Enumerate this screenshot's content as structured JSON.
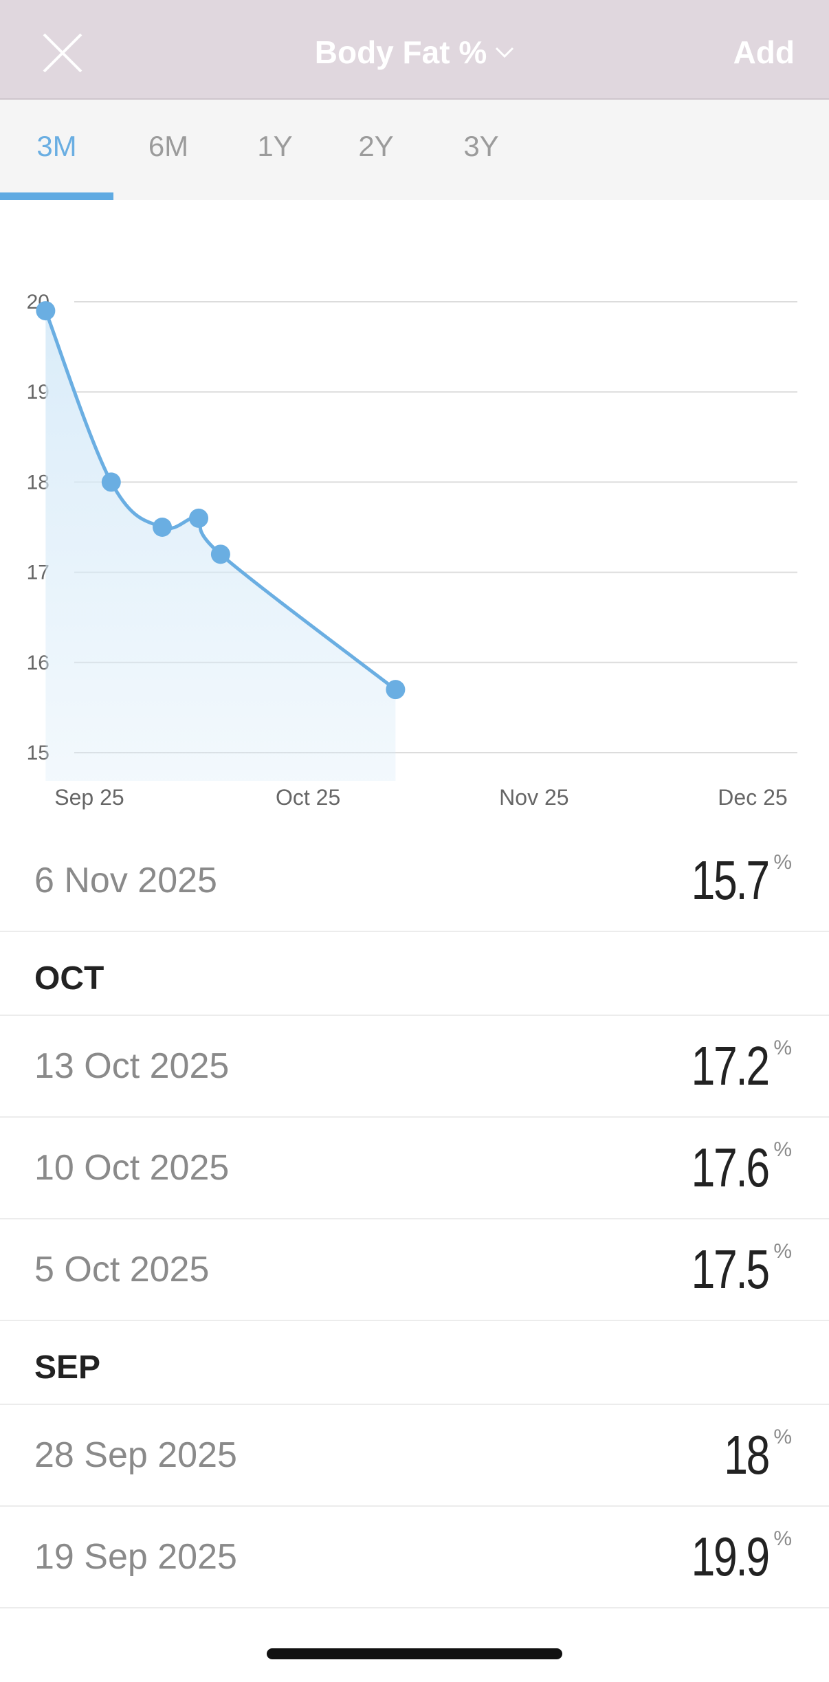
{
  "header": {
    "title": "Body Fat %",
    "add_label": "Add"
  },
  "tabs": [
    {
      "label": "3M",
      "active": true
    },
    {
      "label": "6M",
      "active": false
    },
    {
      "label": "1Y",
      "active": false
    },
    {
      "label": "2Y",
      "active": false
    },
    {
      "label": "3Y",
      "active": false
    }
  ],
  "chart_data": {
    "type": "area",
    "title": "",
    "xlabel": "",
    "ylabel": "",
    "ylim": [
      15,
      20
    ],
    "y_ticks": [
      "20",
      "19",
      "18",
      "17",
      "16",
      "15"
    ],
    "x_ticks": [
      "Sep 25",
      "Oct 25",
      "Nov 25",
      "Dec 25"
    ],
    "points": [
      {
        "date": "19 Sep 2025",
        "value": 19.9
      },
      {
        "date": "28 Sep 2025",
        "value": 18.0
      },
      {
        "date": "5 Oct 2025",
        "value": 17.5
      },
      {
        "date": "10 Oct 2025",
        "value": 17.6
      },
      {
        "date": "13 Oct 2025",
        "value": 17.2
      },
      {
        "date": "6 Nov 2025",
        "value": 15.7
      }
    ],
    "grid": true,
    "colors": {
      "line": "#6aaee2",
      "fill": "#d6eaf8"
    }
  },
  "entries": {
    "latest": {
      "date": "6 Nov 2025",
      "value": "15.7",
      "unit": "%"
    },
    "oct": {
      "header": "OCT",
      "items": [
        {
          "date": "13 Oct 2025",
          "value": "17.2",
          "unit": "%"
        },
        {
          "date": "10 Oct 2025",
          "value": "17.6",
          "unit": "%"
        },
        {
          "date": "5 Oct 2025",
          "value": "17.5",
          "unit": "%"
        }
      ]
    },
    "sep": {
      "header": "SEP",
      "items": [
        {
          "date": "28 Sep 2025",
          "value": "18",
          "unit": "%"
        },
        {
          "date": "19 Sep 2025",
          "value": "19.9",
          "unit": "%"
        }
      ]
    }
  },
  "colors": {
    "header_bg": "#e0d7de",
    "accent": "#6aaee2"
  },
  "icons": {
    "close": "close-icon",
    "dropdown": "chevron-down-icon"
  }
}
